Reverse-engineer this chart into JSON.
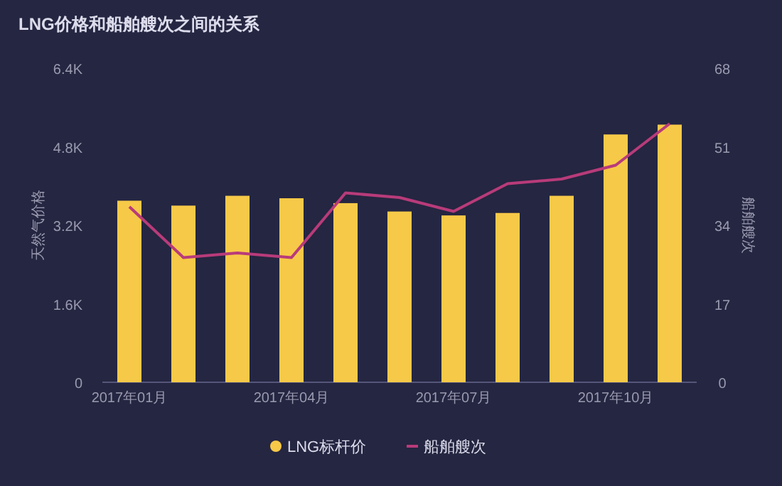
{
  "chart_data": {
    "type": "bar",
    "title": "LNG价格和船舶艘次之间的关系",
    "ylabel": "天然气价格",
    "y2label": "船舶艘次",
    "categories": [
      "2017年01月",
      null,
      null,
      "2017年04月",
      null,
      null,
      "2017年07月",
      null,
      null,
      "2017年10月",
      null
    ],
    "series": [
      {
        "name": "LNG标杆价",
        "color": "#f7c948",
        "values": [
          3700,
          3600,
          3800,
          3750,
          3650,
          3480,
          3400,
          3450,
          3800,
          5050,
          5250
        ]
      },
      {
        "name": "船舶艘次",
        "type": "line",
        "axis": "y2",
        "color": "#b83b7a",
        "values": [
          38,
          27,
          28,
          27,
          41,
          40,
          37,
          43,
          44,
          47,
          56
        ]
      }
    ],
    "ylim": [
      0,
      6400
    ],
    "yticks": [
      0,
      {
        "value": 1600,
        "label": "1.6K"
      },
      {
        "value": 3200,
        "label": "3.2K"
      },
      {
        "value": 4800,
        "label": "4.8K"
      },
      {
        "value": 6400,
        "label": "6.4K"
      }
    ],
    "y2lim": [
      0,
      68
    ],
    "y2ticks": [
      0,
      17,
      34,
      51,
      68
    ],
    "legend": "bottom"
  }
}
